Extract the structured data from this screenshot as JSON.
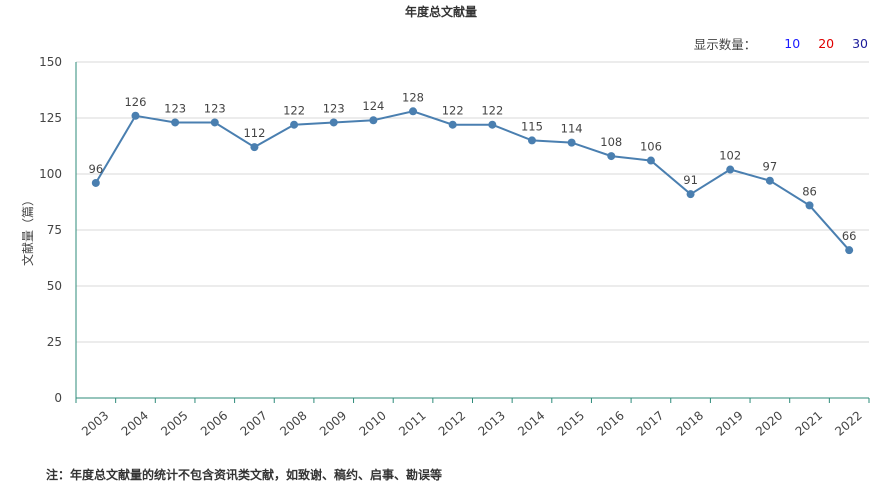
{
  "display_count": {
    "label": "显示数量：",
    "options": [
      {
        "label": "10",
        "color": "#1a1aff"
      },
      {
        "label": "20",
        "color": "#e00000"
      },
      {
        "label": "30",
        "color": "#1a1a9a"
      }
    ]
  },
  "note": "注：年度总文献量的统计不包含资讯类文献，如致谢、稿约、启事、勘误等",
  "chart_data": {
    "type": "line",
    "title": "年度总文献量",
    "xlabel": "",
    "ylabel": "文献量（篇）",
    "ylim": [
      0,
      150
    ],
    "yticks": [
      0,
      25,
      50,
      75,
      100,
      125,
      150
    ],
    "grid": true,
    "line_color": "#4a7fb0",
    "categories": [
      "2003",
      "2004",
      "2005",
      "2006",
      "2007",
      "2008",
      "2009",
      "2010",
      "2011",
      "2012",
      "2013",
      "2014",
      "2015",
      "2016",
      "2017",
      "2018",
      "2019",
      "2020",
      "2021",
      "2022"
    ],
    "series": [
      {
        "values": [
          96,
          126,
          123,
          123,
          112,
          122,
          123,
          124,
          128,
          122,
          122,
          115,
          114,
          108,
          106,
          91,
          102,
          97,
          86,
          66
        ]
      }
    ]
  }
}
